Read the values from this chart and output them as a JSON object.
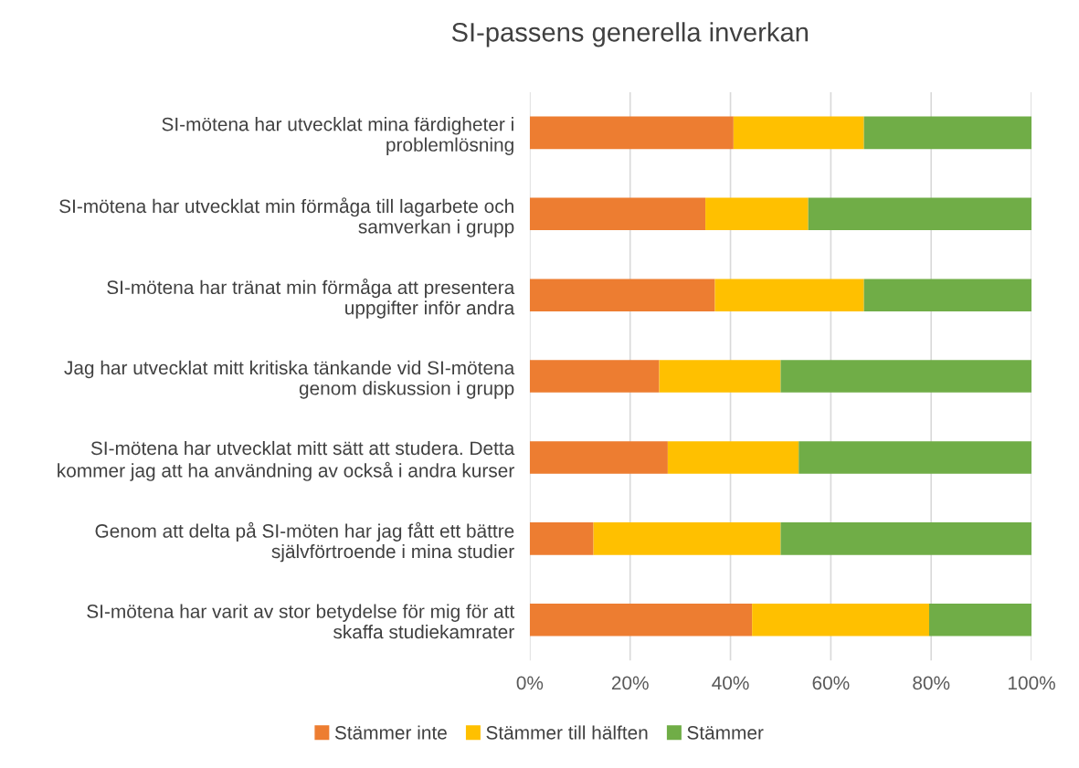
{
  "chart_data": {
    "type": "bar",
    "orientation": "horizontal",
    "stacked": true,
    "title": "SI-passens generella inverkan",
    "categories": [
      "SI-mötena har utvecklat mina färdigheter i\nproblemlösning",
      "SI-mötena har utvecklat min förmåga till lagarbete och\nsamverkan i grupp",
      "SI-mötena har tränat min förmåga att presentera\nuppgifter inför andra",
      "Jag har utvecklat mitt kritiska tänkande vid SI-mötena\ngenom diskussion i grupp",
      "SI-mötena har utvecklat mitt sätt att studera. Detta\nkommer jag att ha användning av också i andra kurser",
      "Genom att delta på SI-möten har jag fått ett bättre\nsjälvförtroende i mina studier",
      "SI-mötena har varit av stor betydelse för mig för att\nskaffa studiekamrater"
    ],
    "series": [
      {
        "name": "Stämmer inte",
        "color": "#ed7d31",
        "values": [
          40.6,
          35.0,
          36.9,
          25.8,
          27.5,
          12.7,
          44.3
        ]
      },
      {
        "name": "Stämmer till hälften",
        "color": "#ffc000",
        "values": [
          26.0,
          20.5,
          29.7,
          24.2,
          26.1,
          37.3,
          35.3
        ]
      },
      {
        "name": "Stämmer",
        "color": "#70ad47",
        "values": [
          33.4,
          44.5,
          33.4,
          50.0,
          46.4,
          50.0,
          20.4
        ]
      }
    ],
    "xlim": [
      0,
      100
    ],
    "xticks": [
      {
        "value": 0,
        "label": "0%"
      },
      {
        "value": 20,
        "label": "20%"
      },
      {
        "value": 40,
        "label": "40%"
      },
      {
        "value": 60,
        "label": "60%"
      },
      {
        "value": 80,
        "label": "80%"
      },
      {
        "value": 100,
        "label": "100%"
      }
    ],
    "grid": "x",
    "legend": "bottom"
  }
}
